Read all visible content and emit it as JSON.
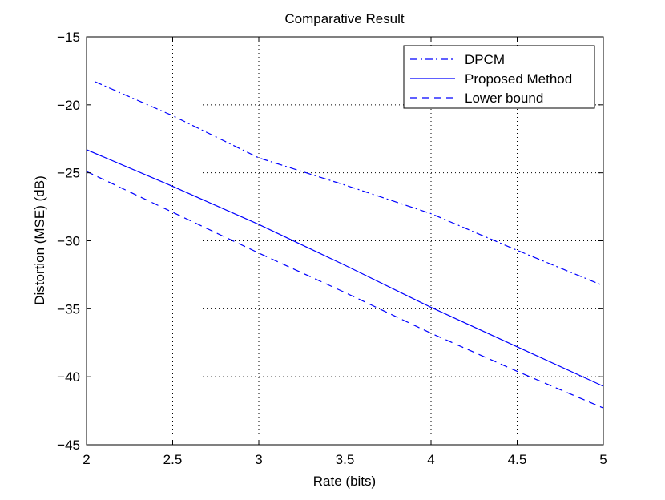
{
  "chart_data": {
    "type": "line",
    "title": "Comparative Result",
    "xlabel": "Rate (bits)",
    "ylabel": "Distortion (MSE) (dB)",
    "xlim": [
      2,
      5
    ],
    "ylim": [
      -45,
      -15
    ],
    "xticks": [
      2,
      2.5,
      3,
      3.5,
      4,
      4.5,
      5
    ],
    "xtick_labels": [
      "2",
      "2.5",
      "3",
      "3.5",
      "4",
      "4.5",
      "5"
    ],
    "yticks": [
      -15,
      -20,
      -25,
      -30,
      -35,
      -40,
      -45
    ],
    "ytick_labels": [
      "−15",
      "−20",
      "−25",
      "−30",
      "−35",
      "−40",
      "−45"
    ],
    "grid": true,
    "legend_position": "top-right",
    "series": [
      {
        "name": "DPCM",
        "style": "dashdot",
        "color": "#0000ff",
        "x": [
          2.05,
          2.5,
          3,
          3.5,
          4,
          4.5,
          5
        ],
        "y": [
          -18.3,
          -20.8,
          -23.9,
          -25.9,
          -28.0,
          -30.7,
          -33.3
        ]
      },
      {
        "name": "Proposed Method",
        "style": "solid",
        "color": "#0000ff",
        "x": [
          2,
          2.5,
          3,
          3.5,
          4,
          4.5,
          5
        ],
        "y": [
          -23.3,
          -26.0,
          -28.8,
          -31.8,
          -34.9,
          -37.8,
          -40.7
        ]
      },
      {
        "name": "Lower bound",
        "style": "dashed",
        "color": "#0000ff",
        "x": [
          2,
          2.5,
          3,
          3.5,
          4,
          4.5,
          5
        ],
        "y": [
          -24.9,
          -27.9,
          -30.9,
          -33.8,
          -36.8,
          -39.6,
          -42.3
        ]
      }
    ]
  }
}
